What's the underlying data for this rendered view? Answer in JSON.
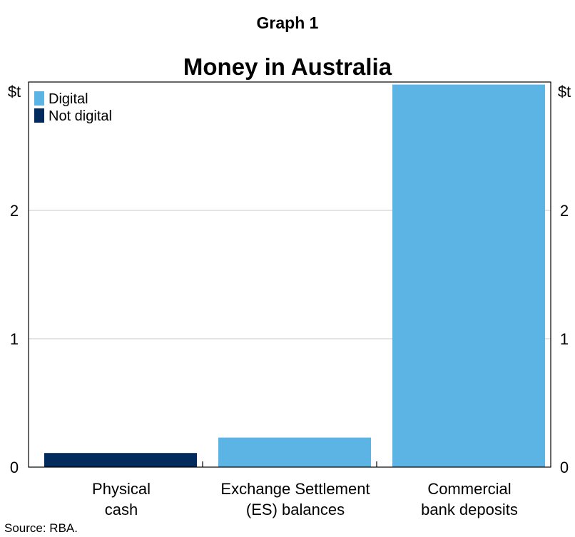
{
  "graph_label": "Graph 1",
  "source": "Source: RBA.",
  "colors": {
    "digital": "#5cb4e4",
    "not_digital": "#002b5c",
    "grid": "#c8c8c8",
    "axis": "#000000"
  },
  "chart_data": {
    "type": "bar",
    "title": "Money in Australia",
    "y_unit_left": "$t",
    "y_unit_right": "$t",
    "ylim": [
      0,
      3
    ],
    "yticks": [
      "0",
      "1",
      "2"
    ],
    "ytick_values": [
      0,
      1,
      2
    ],
    "grid": true,
    "legend_position": "top-left",
    "legend": [
      {
        "label": "Digital",
        "color": "#5cb4e4"
      },
      {
        "label": "Not digital",
        "color": "#002b5c"
      }
    ],
    "categories": [
      [
        "Physical",
        "cash"
      ],
      [
        "Exchange Settlement",
        "(ES) balances"
      ],
      [
        "Commercial",
        "bank deposits"
      ]
    ],
    "values": [
      0.11,
      0.23,
      2.98
    ],
    "series_of_bar": [
      "Not digital",
      "Digital",
      "Digital"
    ]
  }
}
